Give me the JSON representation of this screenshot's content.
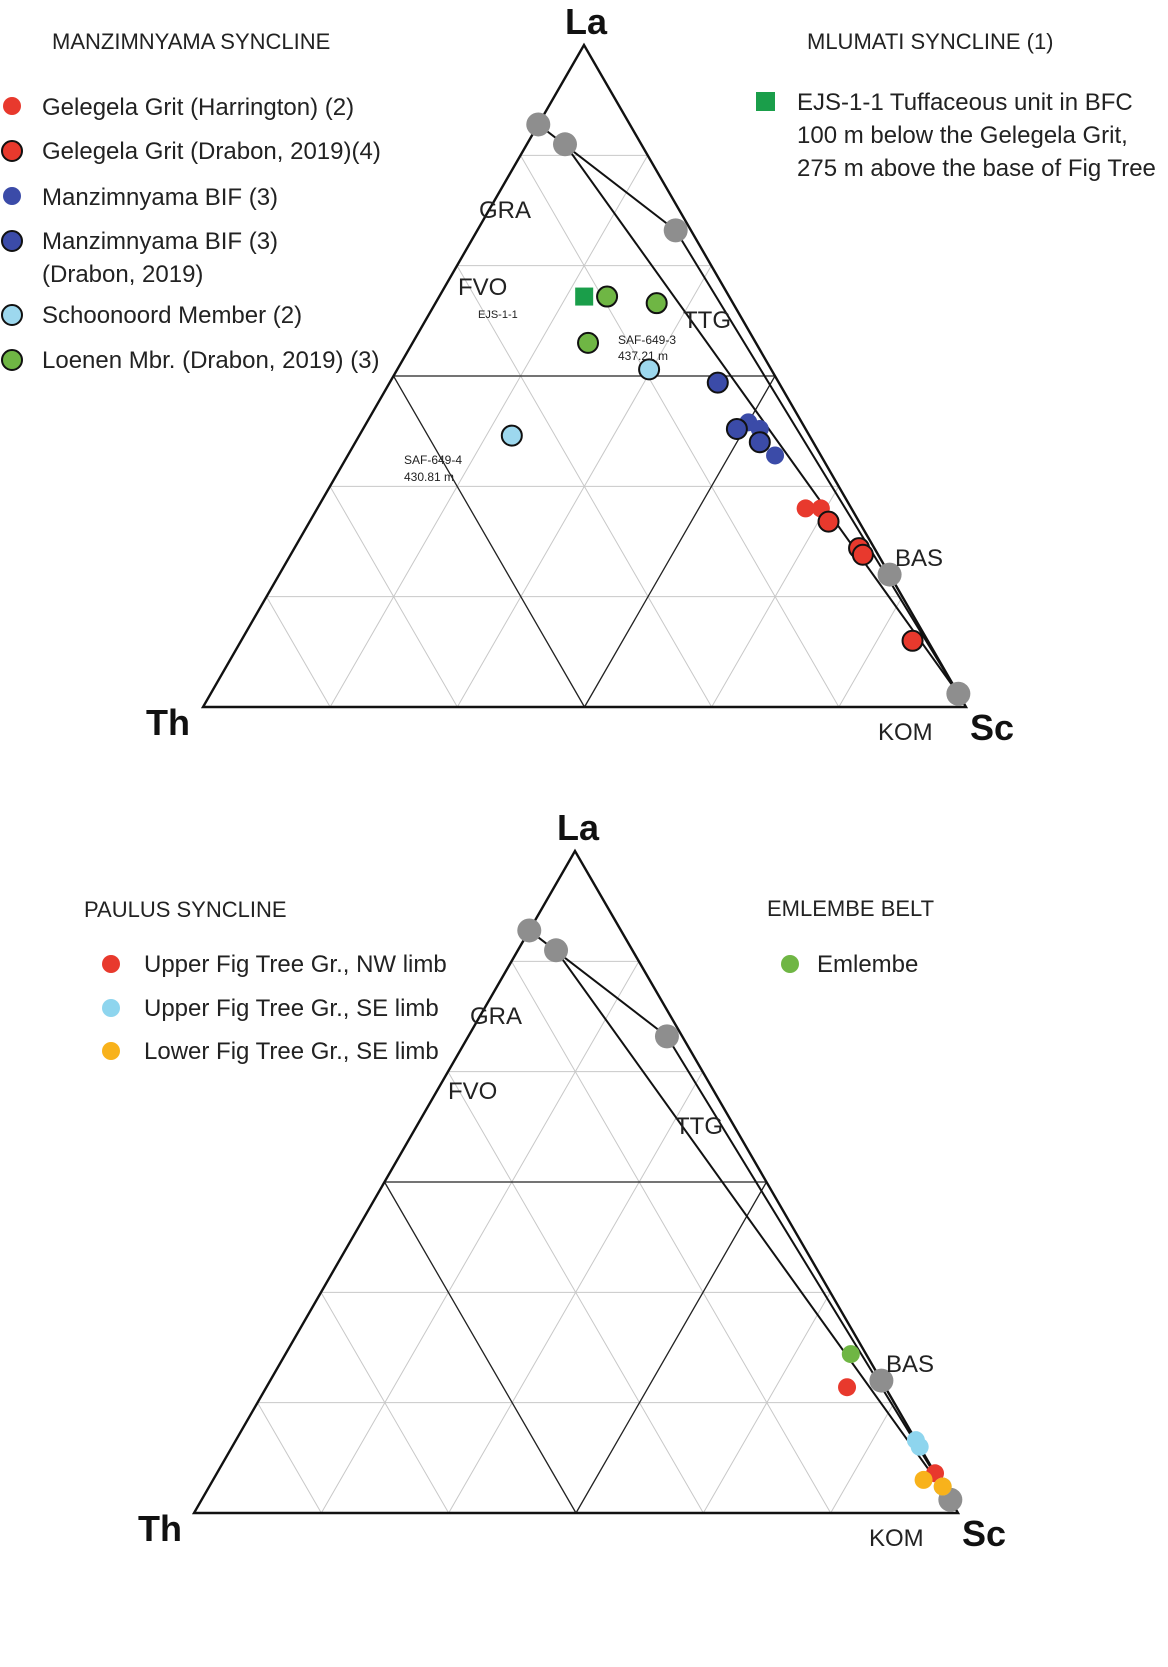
{
  "chart_data": [
    {
      "type": "scatter",
      "diagram": "ternary",
      "vertices": {
        "top": "La",
        "left": "Th",
        "right": "Sc"
      },
      "end_members": [
        {
          "label": "GRA",
          "La": 0.88,
          "Th": 0.12,
          "Sc": 0.0
        },
        {
          "label": "FVO",
          "La": 0.85,
          "Th": 0.1,
          "Sc": 0.05
        },
        {
          "label": "TTG",
          "La": 0.72,
          "Th": 0.02,
          "Sc": 0.26
        },
        {
          "label": "BAS",
          "La": 0.2,
          "Th": 0.0,
          "Sc": 0.8
        },
        {
          "label": "KOM",
          "La": 0.02,
          "Th": 0.0,
          "Sc": 0.98
        }
      ],
      "mixing_lines": [
        [
          "GRA",
          "TTG"
        ],
        [
          "TTG",
          "KOM"
        ],
        [
          "FVO",
          "KOM"
        ]
      ],
      "legend_groups": [
        {
          "title": "MANZIMNYAMA SYNCLINE",
          "entries": [
            {
              "label": "Gelegela Grit (Harrington) (2)",
              "color": "#e8392d",
              "outline": false
            },
            {
              "label": "Gelegela Grit (Drabon, 2019)(4)",
              "color": "#e8392d",
              "outline": true
            },
            {
              "label": "Manzimnyama BIF  (3)",
              "color": "#3b4ba8",
              "outline": false
            },
            {
              "label": "Manzimnyama BIF  (3)",
              "label2": "(Drabon, 2019)",
              "color": "#3b4ba8",
              "outline": true
            },
            {
              "label": "Schoonoord Member (2)",
              "color": "#9dd8ee",
              "outline": true
            },
            {
              "label": "Loenen Mbr. (Drabon, 2019) (3)",
              "color": "#6fb644",
              "outline": true
            }
          ]
        },
        {
          "title": "MLUMATI SYNCLINE (1)",
          "entries": [
            {
              "label": "EJS-1-1  Tuffaceous unit in BFC",
              "label2": "100 m below the Gelegela Grit,",
              "label3": "275 m above the base of Fig Tree",
              "color": "#1a9e4a",
              "shape": "square"
            }
          ]
        }
      ],
      "sample_labels": [
        {
          "text": "EJS-1-1"
        },
        {
          "text": "SAF-649-3",
          "text2": "437.21 m"
        },
        {
          "text": "SAF-649-4",
          "text2": "430.81 m"
        }
      ],
      "series": [
        {
          "name": "Gelegela Grit (Harrington) (2)",
          "color": "#e8392d",
          "outline": false,
          "points": [
            {
              "La": 0.3,
              "Th": 0.06,
              "Sc": 0.64
            },
            {
              "La": 0.3,
              "Th": 0.04,
              "Sc": 0.66
            }
          ]
        },
        {
          "name": "Gelegela Grit (Drabon, 2019)(4)",
          "color": "#e8392d",
          "outline": true,
          "points": [
            {
              "La": 0.28,
              "Th": 0.04,
              "Sc": 0.68
            },
            {
              "La": 0.24,
              "Th": 0.02,
              "Sc": 0.74
            },
            {
              "La": 0.23,
              "Th": 0.02,
              "Sc": 0.75
            },
            {
              "La": 0.1,
              "Th": 0.02,
              "Sc": 0.88
            }
          ]
        },
        {
          "name": "Manzimnyama BIF  (3)",
          "color": "#3b4ba8",
          "outline": false,
          "points": [
            {
              "La": 0.43,
              "Th": 0.07,
              "Sc": 0.5
            },
            {
              "La": 0.42,
              "Th": 0.06,
              "Sc": 0.52
            },
            {
              "La": 0.38,
              "Th": 0.06,
              "Sc": 0.56
            }
          ]
        },
        {
          "name": "Manzimnyama BIF  (3) (Drabon, 2019)",
          "color": "#3b4ba8",
          "outline": true,
          "points": [
            {
              "La": 0.49,
              "Th": 0.08,
              "Sc": 0.43
            },
            {
              "La": 0.42,
              "Th": 0.09,
              "Sc": 0.49
            },
            {
              "La": 0.4,
              "Th": 0.07,
              "Sc": 0.53
            }
          ]
        },
        {
          "name": "Schoonoord Member (2)",
          "color": "#9dd8ee",
          "outline": true,
          "points": [
            {
              "La": 0.51,
              "Th": 0.16,
              "Sc": 0.33
            },
            {
              "La": 0.41,
              "Th": 0.39,
              "Sc": 0.2
            }
          ]
        },
        {
          "name": "Loenen Mbr. (Drabon, 2019) (3)",
          "color": "#6fb644",
          "outline": true,
          "points": [
            {
              "La": 0.62,
              "Th": 0.16,
              "Sc": 0.22
            },
            {
              "La": 0.61,
              "Th": 0.1,
              "Sc": 0.29
            },
            {
              "La": 0.55,
              "Th": 0.22,
              "Sc": 0.23
            }
          ]
        },
        {
          "name": "EJS-1-1",
          "color": "#1a9e4a",
          "shape": "square",
          "points": [
            {
              "La": 0.62,
              "Th": 0.19,
              "Sc": 0.19
            }
          ]
        }
      ]
    },
    {
      "type": "scatter",
      "diagram": "ternary",
      "vertices": {
        "top": "La",
        "left": "Th",
        "right": "Sc"
      },
      "end_members": [
        {
          "label": "GRA",
          "La": 0.88,
          "Th": 0.12,
          "Sc": 0.0
        },
        {
          "label": "FVO",
          "La": 0.85,
          "Th": 0.1,
          "Sc": 0.05
        },
        {
          "label": "TTG",
          "La": 0.72,
          "Th": 0.02,
          "Sc": 0.26
        },
        {
          "label": "BAS",
          "La": 0.2,
          "Th": 0.0,
          "Sc": 0.8
        },
        {
          "label": "KOM",
          "La": 0.02,
          "Th": 0.0,
          "Sc": 0.98
        }
      ],
      "mixing_lines": [
        [
          "GRA",
          "TTG"
        ],
        [
          "TTG",
          "KOM"
        ],
        [
          "FVO",
          "KOM"
        ]
      ],
      "legend_groups": [
        {
          "title": "PAULUS  SYNCLINE",
          "entries": [
            {
              "label": "Upper Fig Tree Gr., NW limb",
              "color": "#e8392d",
              "outline": false
            },
            {
              "label": "Upper Fig Tree Gr., SE limb",
              "color": "#8ed5ee",
              "outline": false
            },
            {
              "label": "Lower Fig Tree Gr., SE limb",
              "color": "#f8b21b",
              "outline": false
            }
          ]
        },
        {
          "title": "EMLEMBE BELT",
          "entries": [
            {
              "label": "Emlembe",
              "color": "#6fb644",
              "outline": false
            }
          ]
        }
      ],
      "series": [
        {
          "name": "Upper Fig Tree Gr., NW limb",
          "color": "#e8392d",
          "outline": false,
          "points": [
            {
              "La": 0.19,
              "Th": 0.05,
              "Sc": 0.76
            },
            {
              "La": 0.06,
              "Th": 0.0,
              "Sc": 0.94
            }
          ]
        },
        {
          "name": "Upper Fig Tree Gr., SE limb",
          "color": "#8ed5ee",
          "outline": false,
          "points": [
            {
              "La": 0.11,
              "Th": 0.0,
              "Sc": 0.89
            },
            {
              "La": 0.1,
              "Th": 0.0,
              "Sc": 0.9
            },
            {
              "La": 0.04,
              "Th": 0.0,
              "Sc": 0.96
            }
          ]
        },
        {
          "name": "Lower Fig Tree Gr., SE limb",
          "color": "#f8b21b",
          "outline": false,
          "points": [
            {
              "La": 0.05,
              "Th": 0.02,
              "Sc": 0.93
            },
            {
              "La": 0.04,
              "Th": 0.0,
              "Sc": 0.96
            }
          ]
        },
        {
          "name": "Emlembe",
          "color": "#6fb644",
          "outline": false,
          "points": [
            {
              "La": 0.24,
              "Th": 0.02,
              "Sc": 0.74
            }
          ]
        }
      ]
    }
  ]
}
